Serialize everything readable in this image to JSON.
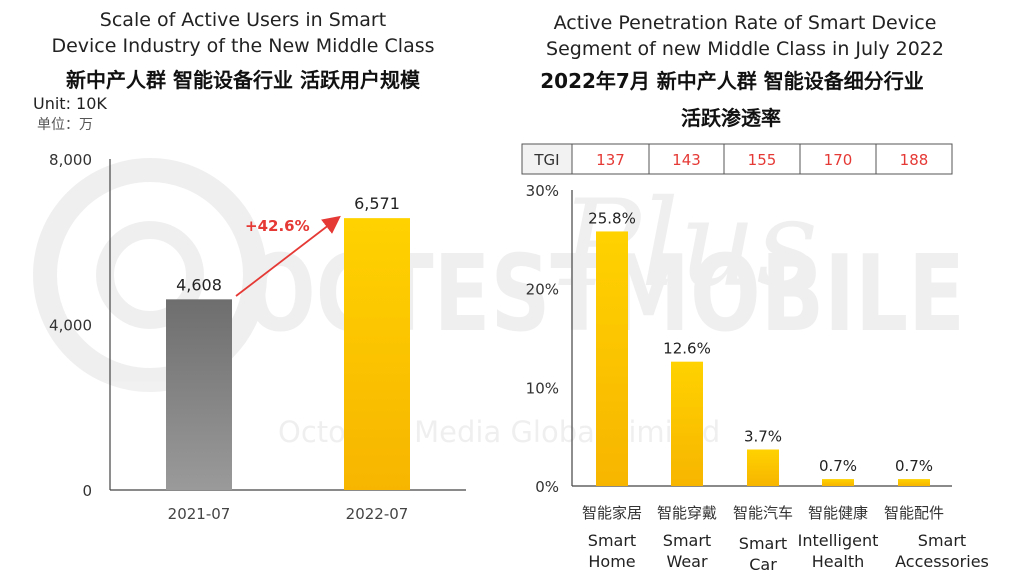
{
  "watermark": {
    "brand": "OCTESTMOBILE",
    "script": "Plus",
    "company": "OctoPlus Media Global Limited"
  },
  "chart_data": [
    {
      "type": "bar",
      "title": "Scale of Active Users in Smart Device Industry of the New Middle Class",
      "title_cn": "新中产人群 智能设备行业 活跃用户规模",
      "unit": "Unit: 10K",
      "unit_cn": "单位：万",
      "categories": [
        "2021-07",
        "2022-07"
      ],
      "values": [
        4608,
        6571
      ],
      "value_labels": [
        "4,608",
        "6,571"
      ],
      "yticks": [
        "0",
        "4,000",
        "8,000"
      ],
      "ylim": [
        0,
        8000
      ],
      "growth_label": "+42.6%",
      "colors": {
        "bar1": "#7a7a7a",
        "bar2": "#f9c300",
        "arrow": "#e53935"
      },
      "grid": false
    },
    {
      "type": "bar",
      "title": "Active Penetration Rate of Smart Device Segment of new Middle Class in July 2022",
      "title_cn": "2022年7月 新中产人群 智能设备细分行业",
      "subtitle_cn": "活跃渗透率",
      "tgi": {
        "label": "TGI",
        "values": [
          "137",
          "143",
          "155",
          "170",
          "188"
        ]
      },
      "categories_cn": [
        "智能家居",
        "智能穿戴",
        "智能汽车",
        "智能健康",
        "智能配件"
      ],
      "categories": [
        "Smart Home",
        "Smart Wear",
        "Smart Car",
        "Intelligent Health",
        "Smart Accessories"
      ],
      "values": [
        25.8,
        12.6,
        3.7,
        0.7,
        0.7
      ],
      "value_labels": [
        "25.8%",
        "12.6%",
        "3.7%",
        "0.7%",
        "0.7%"
      ],
      "yticks": [
        "0%",
        "10%",
        "20%",
        "30%"
      ],
      "ylim": [
        0,
        30
      ],
      "colors": {
        "bar": "#f9c300",
        "tgi_value": "#e53935"
      },
      "grid": false
    }
  ]
}
